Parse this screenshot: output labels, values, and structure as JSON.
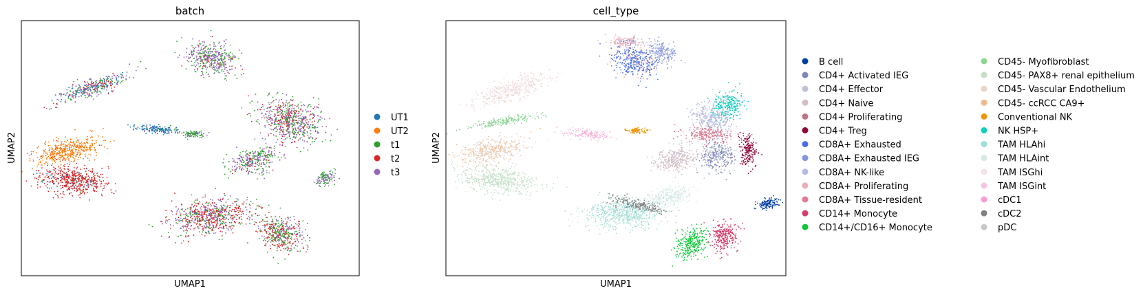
{
  "chart_data": [
    {
      "type": "scatter",
      "title": "batch",
      "xlabel": "UMAP1",
      "ylabel": "UMAP2",
      "grid": false,
      "legend_placement": "right",
      "series": [
        {
          "name": "UT1",
          "color": "#1f77b4"
        },
        {
          "name": "UT2",
          "color": "#ff7f0e"
        },
        {
          "name": "t1",
          "color": "#2ca02c"
        },
        {
          "name": "t2",
          "color": "#d62728"
        },
        {
          "name": "t3",
          "color": "#9467bd"
        }
      ],
      "clusters": [
        {
          "x": 3.1,
          "y": 14.2,
          "rx": 1.3,
          "ry": 0.9,
          "rot": -20,
          "mix": {
            "t1": 0.35,
            "t3": 0.5,
            "t2": 0.15
          }
        },
        {
          "x": -3.0,
          "y": 12.4,
          "rx": 1.9,
          "ry": 0.5,
          "rot": 25,
          "mix": {
            "t3": 0.4,
            "UT1": 0.25,
            "t1": 0.2,
            "t2": 0.15
          }
        },
        {
          "x": -4.2,
          "y": 8.6,
          "rx": 1.7,
          "ry": 0.7,
          "rot": 15,
          "mix": {
            "UT2": 0.95,
            "t2": 0.05
          }
        },
        {
          "x": -3.9,
          "y": 6.8,
          "rx": 1.8,
          "ry": 0.8,
          "rot": -10,
          "mix": {
            "t2": 0.9,
            "UT1": 0.05,
            "t1": 0.05
          }
        },
        {
          "x": 7.0,
          "y": 10.4,
          "rx": 1.6,
          "ry": 1.2,
          "rot": -30,
          "mix": {
            "t3": 0.45,
            "t1": 0.3,
            "t2": 0.25
          }
        },
        {
          "x": 5.2,
          "y": 8.0,
          "rx": 1.2,
          "ry": 0.7,
          "rot": 20,
          "mix": {
            "t1": 0.4,
            "t3": 0.45,
            "t2": 0.15
          }
        },
        {
          "x": 3.0,
          "y": 4.6,
          "rx": 2.0,
          "ry": 1.0,
          "rot": 10,
          "mix": {
            "t2": 0.5,
            "t3": 0.25,
            "t1": 0.2,
            "UT1": 0.05
          }
        },
        {
          "x": 6.6,
          "y": 3.6,
          "rx": 1.2,
          "ry": 1.0,
          "rot": -35,
          "mix": {
            "t1": 0.35,
            "t2": 0.4,
            "t3": 0.25
          }
        },
        {
          "x": 0.4,
          "y": 9.9,
          "rx": 1.3,
          "ry": 0.25,
          "rot": -5,
          "mix": {
            "UT1": 0.8,
            "t3": 0.1,
            "t1": 0.1
          }
        },
        {
          "x": 8.8,
          "y": 6.9,
          "rx": 0.5,
          "ry": 0.35,
          "rot": 30,
          "mix": {
            "t3": 0.5,
            "t1": 0.5
          }
        },
        {
          "x": 2.2,
          "y": 9.6,
          "rx": 0.5,
          "ry": 0.2,
          "rot": 0,
          "mix": {
            "t1": 0.8,
            "t3": 0.2
          }
        }
      ]
    },
    {
      "type": "scatter",
      "title": "cell_type",
      "xlabel": "UMAP1",
      "ylabel": "UMAP2",
      "grid": false,
      "legend_placement": "right",
      "series": [
        {
          "name": "B cell",
          "color": "#023fa5"
        },
        {
          "name": "CD4+ Activated IEG",
          "color": "#7d87b9"
        },
        {
          "name": "CD4+ Effector",
          "color": "#bec1d4"
        },
        {
          "name": "CD4+ Naive",
          "color": "#d6bcc0"
        },
        {
          "name": "CD4+ Proliferating",
          "color": "#bb7784"
        },
        {
          "name": "CD4+ Treg",
          "color": "#8e063b"
        },
        {
          "name": "CD8A+ Exhausted",
          "color": "#4a6fe3"
        },
        {
          "name": "CD8A+ Exhausted IEG",
          "color": "#8595e1"
        },
        {
          "name": "CD8A+ NK-like",
          "color": "#b5bbe3"
        },
        {
          "name": "CD8A+ Proliferating",
          "color": "#e6afb9"
        },
        {
          "name": "CD8A+ Tissue-resident",
          "color": "#e07b91"
        },
        {
          "name": "CD14+ Monocyte",
          "color": "#d33f6a"
        },
        {
          "name": "CD14+/CD16+ Monocyte",
          "color": "#11c638"
        },
        {
          "name": "CD45- Myofibroblast",
          "color": "#8dd593"
        },
        {
          "name": "CD45- PAX8+ renal epithelium",
          "color": "#c6dec7"
        },
        {
          "name": "CD45- Vascular Endothelium",
          "color": "#ead3c6"
        },
        {
          "name": "CD45- ccRCC CA9+",
          "color": "#f0b98d"
        },
        {
          "name": "Conventional NK",
          "color": "#ef9708"
        },
        {
          "name": "NK HSP+",
          "color": "#0fcfc0"
        },
        {
          "name": "TAM HLAhi",
          "color": "#9cded6"
        },
        {
          "name": "TAM HLAint",
          "color": "#d5eae7"
        },
        {
          "name": "TAM ISGhi",
          "color": "#f3e1eb"
        },
        {
          "name": "TAM ISGint",
          "color": "#f6c4e1"
        },
        {
          "name": "cDC1",
          "color": "#f79cd4"
        },
        {
          "name": "cDC2",
          "color": "#7f7f7f"
        },
        {
          "name": "pDC",
          "color": "#c7c7c7"
        }
      ],
      "clusters": [
        {
          "x": 3.0,
          "y": 14.0,
          "rx": 1.2,
          "ry": 0.9,
          "rot": -20,
          "mix": {
            "CD8A+ Exhausted": 0.7,
            "CD8A+ Exhausted IEG": 0.15,
            "CD8A+ Proliferating": 0.15
          }
        },
        {
          "x": 2.6,
          "y": 15.2,
          "rx": 0.9,
          "ry": 0.3,
          "rot": -5,
          "mix": {
            "CD8A+ Proliferating": 0.9,
            "CD8A+ Exhausted": 0.1
          }
        },
        {
          "x": 4.4,
          "y": 14.6,
          "rx": 0.8,
          "ry": 0.5,
          "rot": -30,
          "mix": {
            "CD8A+ Exhausted IEG": 0.6,
            "CD8A+ NK-like": 0.4
          }
        },
        {
          "x": -3.2,
          "y": 12.3,
          "rx": 1.9,
          "ry": 0.6,
          "rot": 25,
          "mix": {
            "TAM ISGhi": 0.6,
            "CD45- Vascular Endothelium": 0.4
          }
        },
        {
          "x": -3.6,
          "y": 10.4,
          "rx": 1.8,
          "ry": 0.22,
          "rot": 12,
          "mix": {
            "CD45- Myofibroblast": 0.9,
            "CD45- PAX8+ renal epithelium": 0.1
          }
        },
        {
          "x": -4.2,
          "y": 8.6,
          "rx": 1.7,
          "ry": 0.7,
          "rot": 15,
          "mix": {
            "CD45- Vascular Endothelium": 0.75,
            "CD45- ccRCC CA9+": 0.25
          }
        },
        {
          "x": -3.9,
          "y": 6.8,
          "rx": 1.8,
          "ry": 0.8,
          "rot": -10,
          "mix": {
            "CD45- PAX8+ renal epithelium": 0.9,
            "TAM HLAint": 0.1
          }
        },
        {
          "x": 0.6,
          "y": 9.6,
          "rx": 1.3,
          "ry": 0.25,
          "rot": -5,
          "mix": {
            "TAM ISGint": 0.8,
            "cDC1": 0.2
          }
        },
        {
          "x": 7.6,
          "y": 11.4,
          "rx": 0.7,
          "ry": 0.9,
          "rot": -20,
          "mix": {
            "NK HSP+": 0.85,
            "TAM HLAhi": 0.15
          }
        },
        {
          "x": 6.7,
          "y": 10.6,
          "rx": 1.0,
          "ry": 0.7,
          "rot": -25,
          "mix": {
            "CD8A+ NK-like": 0.7,
            "CD4+ Effector": 0.3
          }
        },
        {
          "x": 6.6,
          "y": 9.6,
          "rx": 1.2,
          "ry": 0.45,
          "rot": -5,
          "mix": {
            "CD8A+ Tissue-resident": 0.7,
            "CD4+ Proliferating": 0.15,
            "CD8A+ Proliferating": 0.15
          }
        },
        {
          "x": 8.6,
          "y": 8.6,
          "rx": 0.45,
          "ry": 0.9,
          "rot": 5,
          "mix": {
            "CD4+ Treg": 0.9,
            "CD4+ Proliferating": 0.1
          }
        },
        {
          "x": 5.0,
          "y": 8.1,
          "rx": 1.1,
          "ry": 0.7,
          "rot": 20,
          "mix": {
            "CD4+ Naive": 0.8,
            "CD4+ Effector": 0.2
          }
        },
        {
          "x": 7.0,
          "y": 8.3,
          "rx": 0.9,
          "ry": 0.9,
          "rot": 25,
          "mix": {
            "CD4+ Activated IEG": 0.6,
            "CD4+ Effector": 0.4
          }
        },
        {
          "x": 3.0,
          "y": 9.8,
          "rx": 0.5,
          "ry": 0.18,
          "rot": 0,
          "mix": {
            "Conventional NK": 1.0
          }
        },
        {
          "x": 9.6,
          "y": 5.4,
          "rx": 0.6,
          "ry": 0.3,
          "rot": 20,
          "mix": {
            "B cell": 1.0
          }
        },
        {
          "x": 2.4,
          "y": 4.8,
          "rx": 2.0,
          "ry": 0.9,
          "rot": 5,
          "mix": {
            "TAM HLAhi": 0.75,
            "TAM HLAint": 0.25
          }
        },
        {
          "x": 3.2,
          "y": 5.3,
          "rx": 1.4,
          "ry": 0.3,
          "rot": -15,
          "mix": {
            "cDC2": 0.9,
            "pDC": 0.1
          }
        },
        {
          "x": 4.6,
          "y": 5.8,
          "rx": 1.3,
          "ry": 0.5,
          "rot": 15,
          "mix": {
            "TAM HLAint": 0.9,
            "TAM ISGhi": 0.1
          }
        },
        {
          "x": 5.8,
          "y": 3.0,
          "rx": 0.7,
          "ry": 1.0,
          "rot": -30,
          "mix": {
            "CD14+/CD16+ Monocyte": 1.0
          }
        },
        {
          "x": 7.4,
          "y": 3.4,
          "rx": 0.7,
          "ry": 0.9,
          "rot": -10,
          "mix": {
            "CD14+ Monocyte": 1.0
          }
        }
      ]
    }
  ]
}
